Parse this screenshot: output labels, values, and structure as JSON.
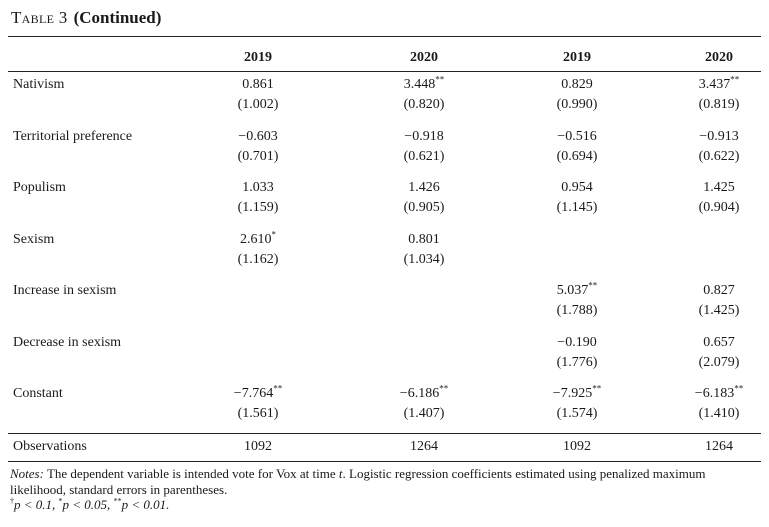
{
  "table": {
    "label": "Table 3",
    "continued": "(Continued)",
    "headers": [
      "2019",
      "2020",
      "2019",
      "2020"
    ],
    "rows": [
      {
        "label": "Nativism",
        "coef": [
          [
            "0.861",
            ""
          ],
          [
            "3.448",
            "**"
          ],
          [
            "0.829",
            ""
          ],
          [
            "3.437",
            "**"
          ]
        ],
        "se": [
          "(1.002)",
          "(0.820)",
          "(0.990)",
          "(0.819)"
        ]
      },
      {
        "label": "Territorial preference",
        "coef": [
          [
            "−0.603",
            ""
          ],
          [
            "−0.918",
            ""
          ],
          [
            "−0.516",
            ""
          ],
          [
            "−0.913",
            ""
          ]
        ],
        "se": [
          "(0.701)",
          "(0.621)",
          "(0.694)",
          "(0.622)"
        ]
      },
      {
        "label": "Populism",
        "coef": [
          [
            "1.033",
            ""
          ],
          [
            "1.426",
            ""
          ],
          [
            "0.954",
            ""
          ],
          [
            "1.425",
            ""
          ]
        ],
        "se": [
          "(1.159)",
          "(0.905)",
          "(1.145)",
          "(0.904)"
        ]
      },
      {
        "label": "Sexism",
        "coef": [
          [
            "2.610",
            "*"
          ],
          [
            "0.801",
            ""
          ],
          [
            "",
            ""
          ],
          [
            "",
            ""
          ]
        ],
        "se": [
          "(1.162)",
          "(1.034)",
          "",
          ""
        ]
      },
      {
        "label": "Increase in sexism",
        "coef": [
          [
            "",
            ""
          ],
          [
            "",
            ""
          ],
          [
            "5.037",
            "**"
          ],
          [
            "0.827",
            ""
          ]
        ],
        "se": [
          "",
          "",
          "(1.788)",
          "(1.425)"
        ]
      },
      {
        "label": "Decrease in sexism",
        "coef": [
          [
            "",
            ""
          ],
          [
            "",
            ""
          ],
          [
            "−0.190",
            ""
          ],
          [
            "0.657",
            ""
          ]
        ],
        "se": [
          "",
          "",
          "(1.776)",
          "(2.079)"
        ]
      },
      {
        "label": "Constant",
        "coef": [
          [
            "−7.764",
            "**"
          ],
          [
            "−6.186",
            "**"
          ],
          [
            "−7.925",
            "**"
          ],
          [
            "−6.183",
            "**"
          ]
        ],
        "se": [
          "(1.561)",
          "(1.407)",
          "(1.574)",
          "(1.410)"
        ]
      }
    ],
    "observations": {
      "label": "Observations",
      "values": [
        "1092",
        "1264",
        "1092",
        "1264"
      ]
    }
  },
  "notes": {
    "label": "Notes:",
    "text": "The dependent variable is intended vote for Vox at time",
    "t": "t",
    "text2": ". Logistic regression coefficients estimated using penalized maximum likelihood, standard errors in parentheses.",
    "sig": [
      {
        "mark": "†",
        "text": "p < 0.1, "
      },
      {
        "mark": "*",
        "text": "p < 0.05, "
      },
      {
        "mark": "**",
        "text": "p < 0.01."
      }
    ]
  }
}
